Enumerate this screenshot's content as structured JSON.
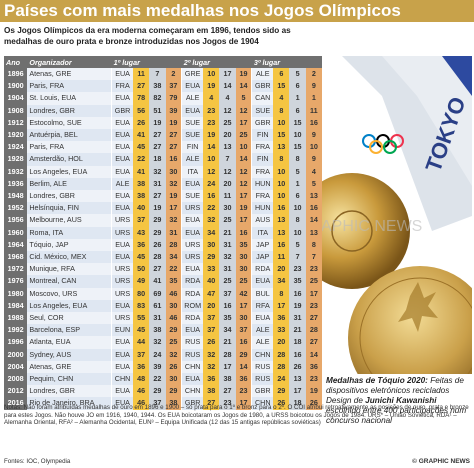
{
  "title": "Países com mais medalhas nos Jogos Olímpicos",
  "subtitle": "Os Jogos Olímpicos da era moderna começaram em 1896, tendos sido as medalhas de ouro prata e  bronze introduzidas nos Jogos de 1904",
  "headers": {
    "year": "Ano",
    "organizer": "Organizador",
    "first": "1º lugar",
    "second": "2º lugar",
    "third": "3º lugar"
  },
  "rows": [
    {
      "year": "1896",
      "city": "Atenas, GRE",
      "c1": "EUA",
      "m1": [
        "11",
        "7",
        "2"
      ],
      "c2": "GRE",
      "m2": [
        "10",
        "17",
        "19"
      ],
      "c3": "ALE",
      "m3": [
        "6",
        "5",
        "2"
      ]
    },
    {
      "year": "1900",
      "city": "Paris, FRA",
      "c1": "FRA",
      "m1": [
        "27",
        "38",
        "37"
      ],
      "c2": "EUA",
      "m2": [
        "19",
        "14",
        "14"
      ],
      "c3": "GBR",
      "m3": [
        "15",
        "6",
        "9"
      ]
    },
    {
      "year": "1904",
      "city": "St. Louis, EUA",
      "c1": "EUA",
      "m1": [
        "78",
        "82",
        "79"
      ],
      "c2": "ALE",
      "m2": [
        "4",
        "4",
        "5"
      ],
      "c3": "CAN",
      "m3": [
        "4",
        "1",
        "1"
      ]
    },
    {
      "year": "1908",
      "city": "Londres, GBR",
      "c1": "GBR",
      "m1": [
        "56",
        "51",
        "39"
      ],
      "c2": "EUA",
      "m2": [
        "23",
        "12",
        "12"
      ],
      "c3": "SUE",
      "m3": [
        "8",
        "6",
        "11"
      ]
    },
    {
      "year": "1912",
      "city": "Estocolmo, SUE",
      "c1": "EUA",
      "m1": [
        "26",
        "19",
        "19"
      ],
      "c2": "SUE",
      "m2": [
        "23",
        "25",
        "17"
      ],
      "c3": "GBR",
      "m3": [
        "10",
        "15",
        "16"
      ]
    },
    {
      "year": "1920",
      "city": "Antuérpia, BEL",
      "c1": "EUA",
      "m1": [
        "41",
        "27",
        "27"
      ],
      "c2": "SUE",
      "m2": [
        "19",
        "20",
        "25"
      ],
      "c3": "FIN",
      "m3": [
        "15",
        "10",
        "9"
      ]
    },
    {
      "year": "1924",
      "city": "Paris, FRA",
      "c1": "EUA",
      "m1": [
        "45",
        "27",
        "27"
      ],
      "c2": "FIN",
      "m2": [
        "14",
        "13",
        "10"
      ],
      "c3": "FRA",
      "m3": [
        "13",
        "15",
        "10"
      ]
    },
    {
      "year": "1928",
      "city": "Amsterdão, HOL",
      "c1": "EUA",
      "m1": [
        "22",
        "18",
        "16"
      ],
      "c2": "ALE",
      "m2": [
        "10",
        "7",
        "14"
      ],
      "c3": "FIN",
      "m3": [
        "8",
        "8",
        "9"
      ]
    },
    {
      "year": "1932",
      "city": "Los Angeles, EUA",
      "c1": "EUA",
      "m1": [
        "41",
        "32",
        "30"
      ],
      "c2": "ITA",
      "m2": [
        "12",
        "12",
        "12"
      ],
      "c3": "FRA",
      "m3": [
        "10",
        "5",
        "4"
      ]
    },
    {
      "year": "1936",
      "city": "Berlim, ALE",
      "c1": "ALE",
      "m1": [
        "38",
        "31",
        "32"
      ],
      "c2": "EUA",
      "m2": [
        "24",
        "20",
        "12"
      ],
      "c3": "HUN",
      "m3": [
        "10",
        "1",
        "5"
      ]
    },
    {
      "year": "1948",
      "city": "Londres, GBR",
      "c1": "EUA",
      "m1": [
        "38",
        "27",
        "19"
      ],
      "c2": "SUE",
      "m2": [
        "16",
        "11",
        "17"
      ],
      "c3": "FRA",
      "m3": [
        "10",
        "6",
        "13"
      ]
    },
    {
      "year": "1952",
      "city": "Helsínquia, FIN",
      "c1": "EUA",
      "m1": [
        "40",
        "19",
        "17"
      ],
      "c2": "URS",
      "m2": [
        "22",
        "30",
        "19"
      ],
      "c3": "HUN",
      "m3": [
        "16",
        "10",
        "16"
      ]
    },
    {
      "year": "1956",
      "city": "Melbourne, AUS",
      "c1": "URS",
      "m1": [
        "37",
        "29",
        "32"
      ],
      "c2": "EUA",
      "m2": [
        "32",
        "25",
        "17"
      ],
      "c3": "AUS",
      "m3": [
        "13",
        "8",
        "14"
      ]
    },
    {
      "year": "1960",
      "city": "Roma, ITA",
      "c1": "URS",
      "m1": [
        "43",
        "29",
        "31"
      ],
      "c2": "EUA",
      "m2": [
        "34",
        "21",
        "16"
      ],
      "c3": "ITA",
      "m3": [
        "13",
        "10",
        "13"
      ]
    },
    {
      "year": "1964",
      "city": "Tóquio, JAP",
      "c1": "EUA",
      "m1": [
        "36",
        "26",
        "28"
      ],
      "c2": "URS",
      "m2": [
        "30",
        "31",
        "35"
      ],
      "c3": "JAP",
      "m3": [
        "16",
        "5",
        "8"
      ]
    },
    {
      "year": "1968",
      "city": "Cid. México, MEX",
      "c1": "EUA",
      "m1": [
        "45",
        "28",
        "34"
      ],
      "c2": "URS",
      "m2": [
        "29",
        "32",
        "30"
      ],
      "c3": "JAP",
      "m3": [
        "11",
        "7",
        "7"
      ]
    },
    {
      "year": "1972",
      "city": "Munique, RFA",
      "c1": "URS",
      "m1": [
        "50",
        "27",
        "22"
      ],
      "c2": "EUA",
      "m2": [
        "33",
        "31",
        "30"
      ],
      "c3": "RDA",
      "m3": [
        "20",
        "23",
        "23"
      ]
    },
    {
      "year": "1976",
      "city": "Montreal, CAN",
      "c1": "URS",
      "m1": [
        "49",
        "41",
        "35"
      ],
      "c2": "RDA",
      "m2": [
        "40",
        "25",
        "25"
      ],
      "c3": "EUA",
      "m3": [
        "34",
        "35",
        "25"
      ]
    },
    {
      "year": "1980",
      "city": "Moscovo, URS",
      "c1": "URS",
      "m1": [
        "80",
        "69",
        "46"
      ],
      "c2": "RDA",
      "m2": [
        "47",
        "37",
        "42"
      ],
      "c3": "BUL",
      "m3": [
        "8",
        "16",
        "17"
      ]
    },
    {
      "year": "1984",
      "city": "Los Angeles, EUA",
      "c1": "EUA",
      "m1": [
        "83",
        "61",
        "30"
      ],
      "c2": "ROM",
      "m2": [
        "20",
        "16",
        "17"
      ],
      "c3": "RFA",
      "m3": [
        "17",
        "19",
        "23"
      ]
    },
    {
      "year": "1988",
      "city": "Seul, COR",
      "c1": "URS",
      "m1": [
        "55",
        "31",
        "46"
      ],
      "c2": "RDA",
      "m2": [
        "37",
        "35",
        "30"
      ],
      "c3": "EUA",
      "m3": [
        "36",
        "31",
        "27"
      ]
    },
    {
      "year": "1992",
      "city": "Barcelona, ESP",
      "c1": "EUN",
      "m1": [
        "45",
        "38",
        "29"
      ],
      "c2": "EUA",
      "m2": [
        "37",
        "34",
        "37"
      ],
      "c3": "ALE",
      "m3": [
        "33",
        "21",
        "28"
      ]
    },
    {
      "year": "1996",
      "city": "Atlanta, EUA",
      "c1": "EUA",
      "m1": [
        "44",
        "32",
        "25"
      ],
      "c2": "RUS",
      "m2": [
        "26",
        "21",
        "16"
      ],
      "c3": "ALE",
      "m3": [
        "20",
        "18",
        "27"
      ]
    },
    {
      "year": "2000",
      "city": "Sydney, AUS",
      "c1": "EUA",
      "m1": [
        "37",
        "24",
        "32"
      ],
      "c2": "RUS",
      "m2": [
        "32",
        "28",
        "29"
      ],
      "c3": "CHN",
      "m3": [
        "28",
        "16",
        "14"
      ]
    },
    {
      "year": "2004",
      "city": "Atenas, GRE",
      "c1": "EUA",
      "m1": [
        "36",
        "39",
        "26"
      ],
      "c2": "CHN",
      "m2": [
        "32",
        "17",
        "14"
      ],
      "c3": "RUS",
      "m3": [
        "28",
        "26",
        "36"
      ]
    },
    {
      "year": "2008",
      "city": "Pequim, CHN",
      "c1": "CHN",
      "m1": [
        "48",
        "22",
        "30"
      ],
      "c2": "EUA",
      "m2": [
        "36",
        "38",
        "36"
      ],
      "c3": "RUS",
      "m3": [
        "24",
        "13",
        "23"
      ]
    },
    {
      "year": "2012",
      "city": "Londres, GBR",
      "c1": "EUA",
      "m1": [
        "46",
        "29",
        "29"
      ],
      "c2": "CHN",
      "m2": [
        "38",
        "27",
        "23"
      ],
      "c3": "GBR",
      "m3": [
        "29",
        "17",
        "19"
      ]
    },
    {
      "year": "2016",
      "city": "Rio de Janeiro, BRA",
      "c1": "EUA",
      "m1": [
        "46",
        "37",
        "38"
      ],
      "c2": "GBR",
      "m2": [
        "27",
        "23",
        "17"
      ],
      "c3": "CHN",
      "m3": [
        "26",
        "18",
        "26"
      ]
    }
  ],
  "photo": {
    "ribbon_text": "TOKYO",
    "watermark": "GRAPHIC NEWS"
  },
  "caption": {
    "lead": "Medalhas de Tóquio 2020:",
    "text": " Feitas de dispositivos eletrónicos reciclados Design de ",
    "designer": "Junichi Kawanishi",
    "text2": " escolhido entre 400 participações num concurso nacional"
  },
  "notes": "Notas: Não foram atribuídas medalhas de ouro em 1896 e 1900 – só prata para o 1º e bronz para o 2º. O COI atribui retroativamente as posições de ouro, prata e bronze para estes Jogos. Não houve JO em 1916, 1940, 1944. Os EUA boicotaram os Jogos de 1980, a URSS boicotou os Jogos de 1984. URS* – União Soviética, RDA¹ – Alemanha Oriental, RFA² – Alemanha Ocidental, EUN³ – Equipa Unificada (12 das 15 antigas repúblicas soviéticas)",
  "source": "Fontes: IOC, Olympedia",
  "credit": "© GRAPHIC NEWS",
  "colors": {
    "gold": "#f5c542",
    "silver": "#cfd5dc",
    "bronze": "#e7a86a",
    "header": "#c8a24a"
  }
}
